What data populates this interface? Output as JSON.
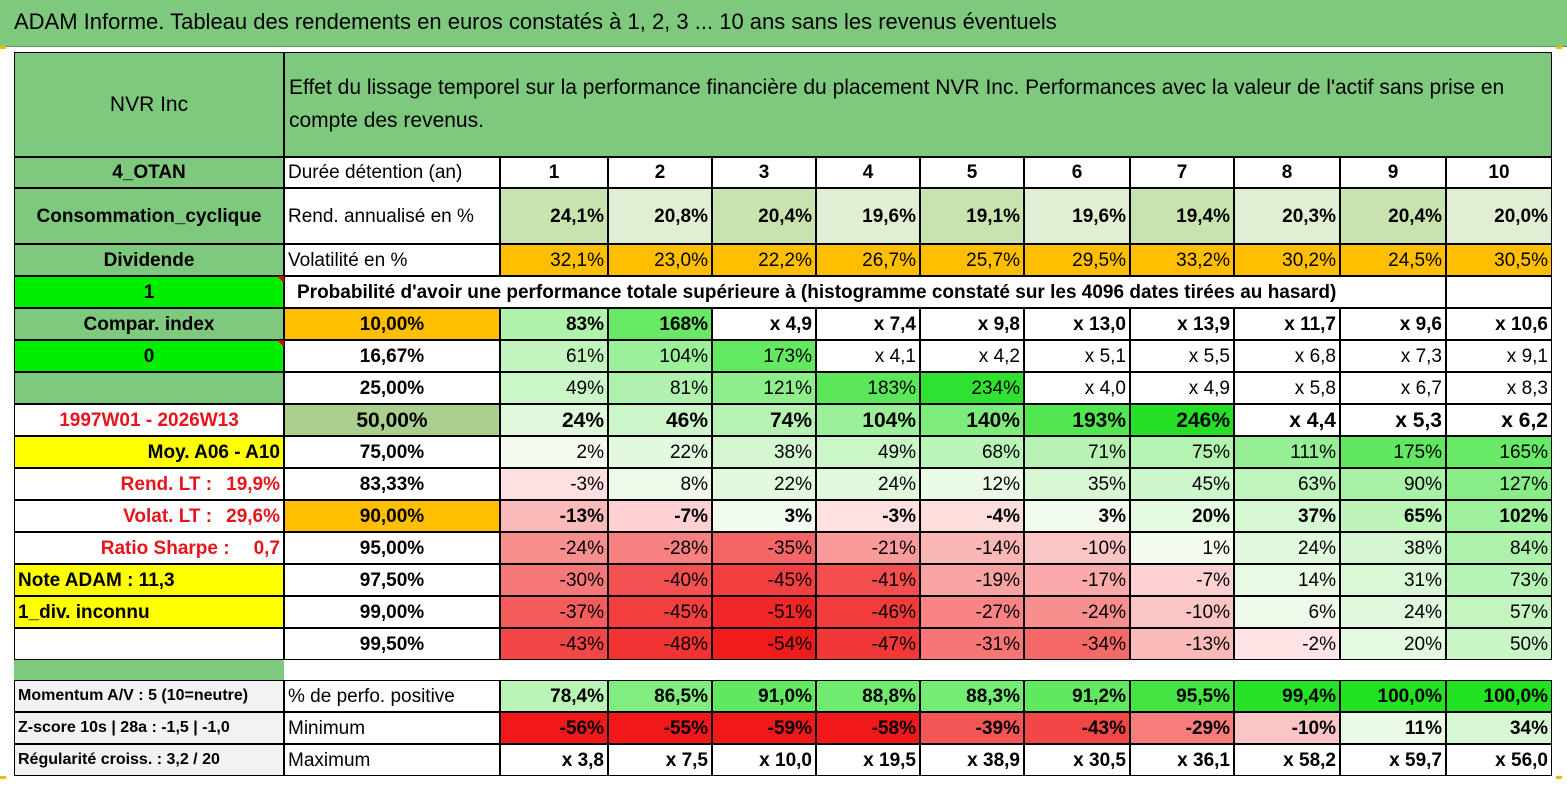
{
  "title": "ADAM Informe. Tableau des rendements en euros constatés à 1, 2, 3 ... 10 ans sans les revenus éventuels",
  "colors": {
    "green_header": "#7fc97f",
    "bright_green": "#00ee00",
    "yellow": "#ffff00",
    "orange": "#ffbf00",
    "red_text": "#e8141b",
    "white": "#ffffff"
  },
  "header": {
    "asset_name": "NVR Inc",
    "description": "Effet du lissage temporel sur la performance financière du placement NVR Inc. Performances avec la valeur de l'actif sans prise en compte des revenus."
  },
  "years": [
    "1",
    "2",
    "3",
    "4",
    "5",
    "6",
    "7",
    "8",
    "9",
    "10"
  ],
  "info": {
    "code": "4_OTAN",
    "sector": "Consommation_cyclique",
    "dividend": "Dividende",
    "flag1": "1",
    "compar_index": "Compar. index",
    "flag0": "0",
    "period": "1997W01 - 2026W13",
    "moy": "Moy. A06 - A10",
    "rend_lt_label": "Rend. LT :",
    "rend_lt_value": "19,9%",
    "volat_lt_label": "Volat. LT :",
    "volat_lt_value": "29,6%",
    "sharpe_label": "Ratio Sharpe :",
    "sharpe_value": "0,7",
    "note_adam": "Note ADAM : 11,3",
    "div_inconnu": "1_div. inconnu"
  },
  "stats": {
    "duration_label": "Durée détention (an)",
    "rend_label": "Rend. annualisé en %",
    "rend_values": [
      "24,1%",
      "20,8%",
      "20,4%",
      "19,6%",
      "19,1%",
      "19,6%",
      "19,4%",
      "20,3%",
      "20,4%",
      "20,0%"
    ],
    "vol_label": "Volatilité en %",
    "vol_values": [
      "32,1%",
      "23,0%",
      "22,2%",
      "26,7%",
      "25,7%",
      "29,5%",
      "33,2%",
      "30,2%",
      "24,5%",
      "30,5%"
    ]
  },
  "prob_title": "Probabilité d'avoir une performance totale supérieure à (histogramme constaté sur les 4096 dates tirées au hasard)",
  "prob_rows": [
    {
      "p": "10,00%",
      "v": [
        "83%",
        "168%",
        "x 4,9",
        "x 7,4",
        "x 9,8",
        "x 13,0",
        "x 13,9",
        "x 11,7",
        "x 9,6",
        "x 10,6"
      ]
    },
    {
      "p": "16,67%",
      "v": [
        "61%",
        "104%",
        "173%",
        "x 4,1",
        "x 4,2",
        "x 5,1",
        "x 5,5",
        "x 6,8",
        "x 7,3",
        "x 9,1"
      ]
    },
    {
      "p": "25,00%",
      "v": [
        "49%",
        "81%",
        "121%",
        "183%",
        "234%",
        "x 4,0",
        "x 4,9",
        "x 5,8",
        "x 6,7",
        "x 8,3"
      ]
    },
    {
      "p": "50,00%",
      "v": [
        "24%",
        "46%",
        "74%",
        "104%",
        "140%",
        "193%",
        "246%",
        "x 4,4",
        "x 5,3",
        "x 6,2"
      ]
    },
    {
      "p": "75,00%",
      "v": [
        "2%",
        "22%",
        "38%",
        "49%",
        "68%",
        "71%",
        "75%",
        "111%",
        "175%",
        "165%"
      ]
    },
    {
      "p": "83,33%",
      "v": [
        "-3%",
        "8%",
        "22%",
        "24%",
        "12%",
        "35%",
        "45%",
        "63%",
        "90%",
        "127%"
      ]
    },
    {
      "p": "90,00%",
      "v": [
        "-13%",
        "-7%",
        "3%",
        "-3%",
        "-4%",
        "3%",
        "20%",
        "37%",
        "65%",
        "102%"
      ]
    },
    {
      "p": "95,00%",
      "v": [
        "-24%",
        "-28%",
        "-35%",
        "-21%",
        "-14%",
        "-10%",
        "1%",
        "24%",
        "38%",
        "84%"
      ]
    },
    {
      "p": "97,50%",
      "v": [
        "-30%",
        "-40%",
        "-45%",
        "-41%",
        "-19%",
        "-17%",
        "-7%",
        "14%",
        "31%",
        "73%"
      ]
    },
    {
      "p": "99,00%",
      "v": [
        "-37%",
        "-45%",
        "-51%",
        "-46%",
        "-27%",
        "-24%",
        "-10%",
        "6%",
        "24%",
        "57%"
      ]
    },
    {
      "p": "99,50%",
      "v": [
        "-43%",
        "-48%",
        "-54%",
        "-47%",
        "-31%",
        "-34%",
        "-13%",
        "-2%",
        "20%",
        "50%"
      ]
    }
  ],
  "bottom": [
    {
      "left": "Momentum A/V : 5 (10=neutre)",
      "label": "% de perfo. positive",
      "v": [
        "78,4%",
        "86,5%",
        "91,0%",
        "88,8%",
        "88,3%",
        "91,2%",
        "95,5%",
        "99,4%",
        "100,0%",
        "100,0%"
      ]
    },
    {
      "left": "Z-score 10s | 28a : -1,5 | -1,0",
      "label": "Minimum",
      "v": [
        "-56%",
        "-55%",
        "-59%",
        "-58%",
        "-39%",
        "-43%",
        "-29%",
        "-10%",
        "11%",
        "34%"
      ]
    },
    {
      "left": "Régularité croiss. : 3,2 / 20",
      "label": "Maximum",
      "v": [
        "x 3,8",
        "x 7,5",
        "x 10,0",
        "x 19,5",
        "x 38,9",
        "x 30,5",
        "x 36,1",
        "x 58,2",
        "x 59,7",
        "x 56,0"
      ]
    }
  ]
}
